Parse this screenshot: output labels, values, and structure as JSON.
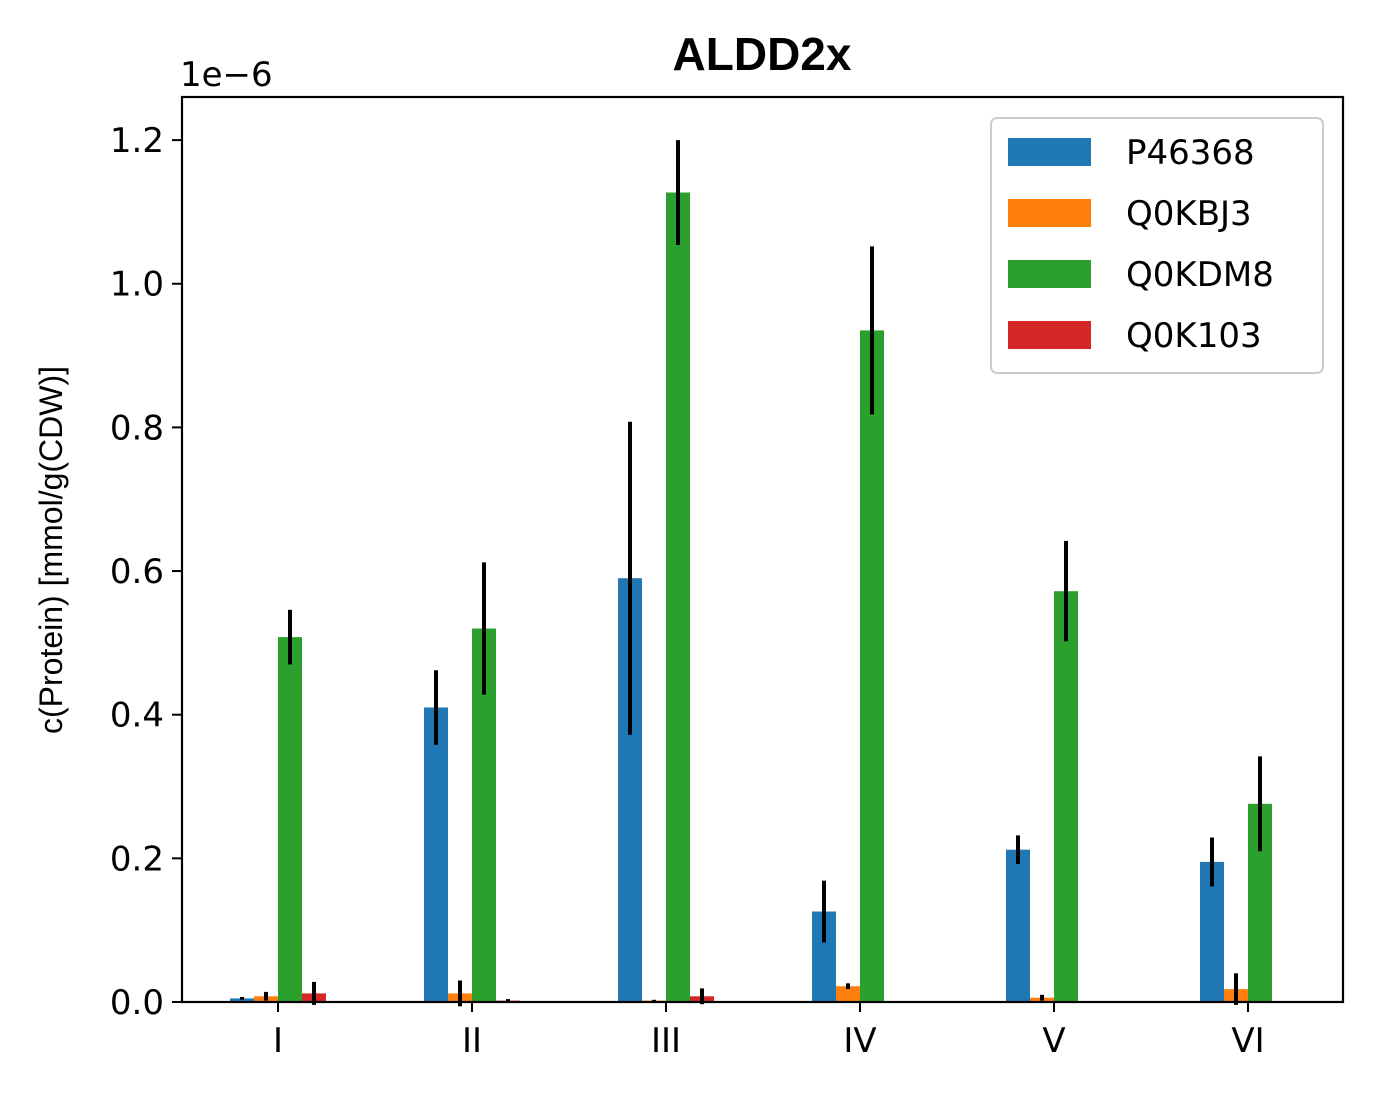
{
  "chart_data": {
    "type": "bar",
    "title": "ALDD2x",
    "xlabel": "",
    "ylabel": "c(Protein) [mmol/g(CDW)]",
    "y_offset_label": "1e−6",
    "ylim": [
      0,
      1.26
    ],
    "yticks": [
      0.0,
      0.2,
      0.4,
      0.6,
      0.8,
      1.0,
      1.2
    ],
    "ytick_labels": [
      "0.0",
      "0.2",
      "0.4",
      "0.6",
      "0.8",
      "1.0",
      "1.2"
    ],
    "categories": [
      "I",
      "II",
      "III",
      "IV",
      "V",
      "VI"
    ],
    "grid": false,
    "legend_position": "top-right",
    "series": [
      {
        "name": "P46368",
        "color": "#1f77b4",
        "values": [
          0.005,
          0.41,
          0.59,
          0.126,
          0.212,
          0.195
        ],
        "errors": [
          0.002,
          0.052,
          0.218,
          0.043,
          0.02,
          0.034
        ]
      },
      {
        "name": "Q0KBJ3",
        "color": "#ff7f0e",
        "values": [
          0.008,
          0.012,
          0.002,
          0.022,
          0.006,
          0.018
        ],
        "errors": [
          0.006,
          0.018,
          0.001,
          0.004,
          0.004,
          0.022
        ]
      },
      {
        "name": "Q0KDM8",
        "color": "#2ca02c",
        "values": [
          0.508,
          0.52,
          1.127,
          0.935,
          0.572,
          0.276
        ],
        "errors": [
          0.038,
          0.092,
          0.073,
          0.117,
          0.07,
          0.066
        ]
      },
      {
        "name": "Q0K103",
        "color": "#d62728",
        "values": [
          0.012,
          0.002,
          0.008,
          0.0,
          0.0,
          0.0
        ],
        "errors": [
          0.016,
          0.002,
          0.011,
          0.0,
          0.0,
          0.0
        ]
      }
    ]
  }
}
